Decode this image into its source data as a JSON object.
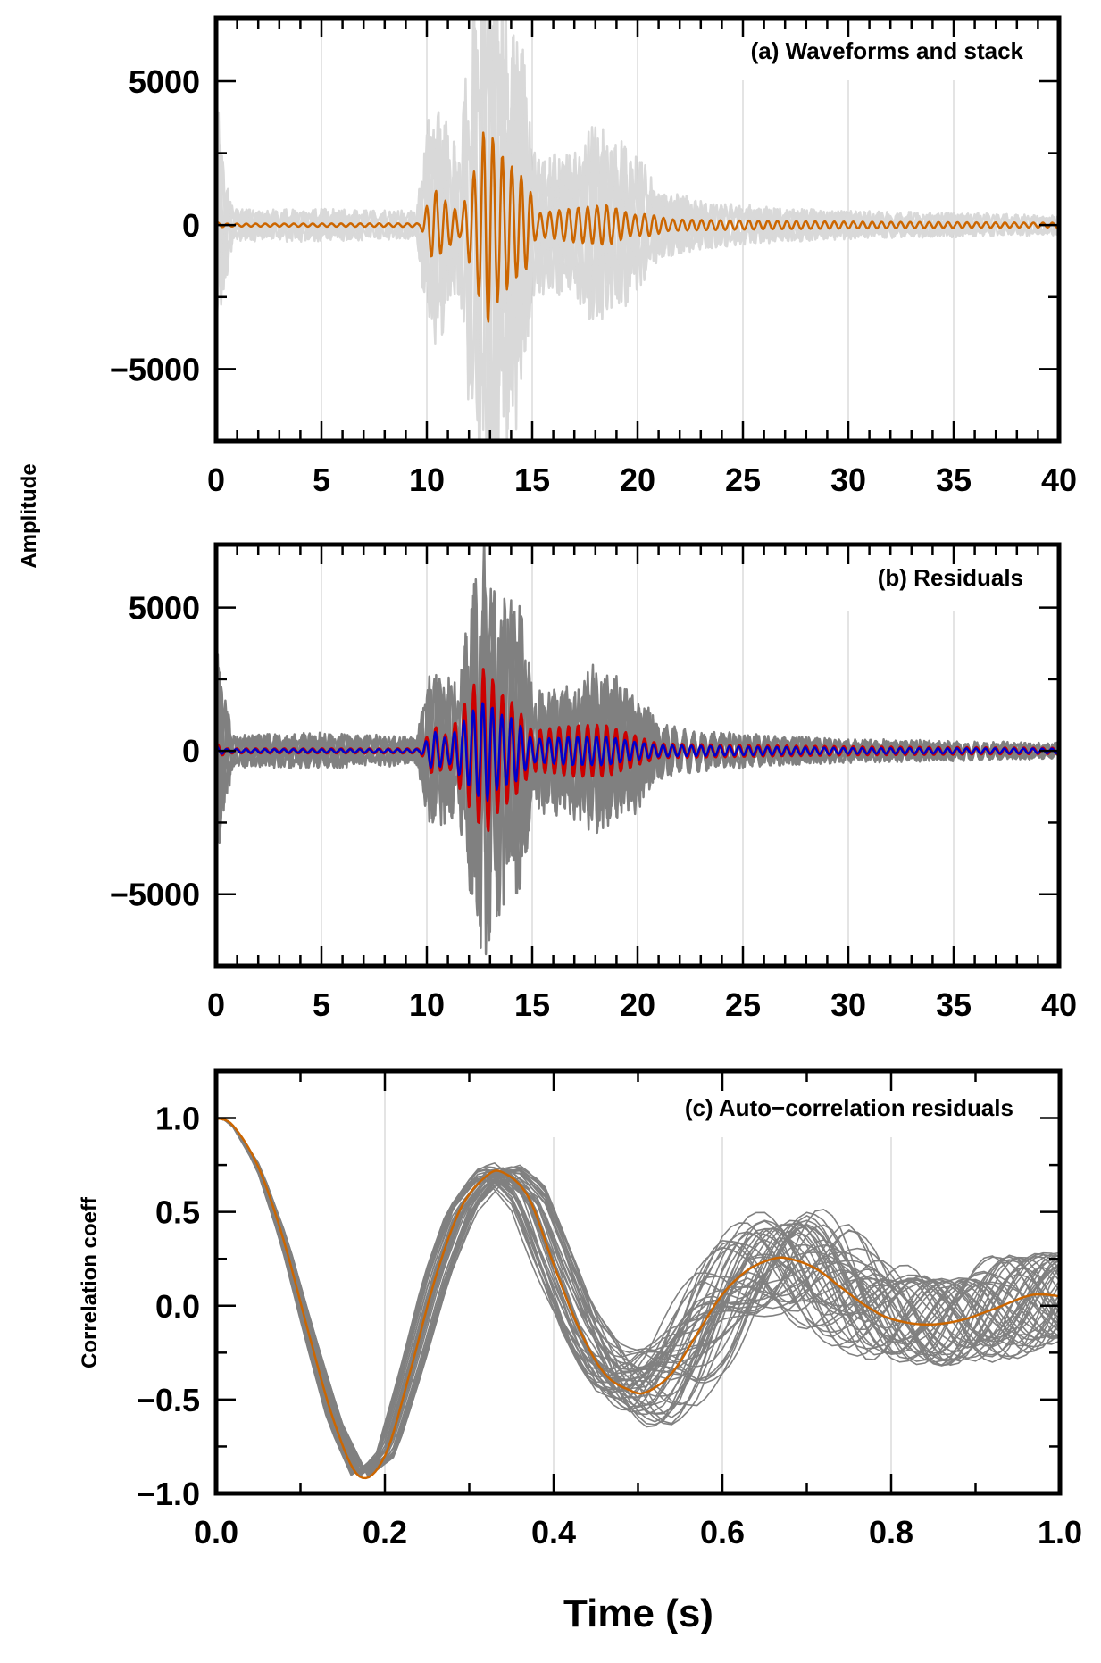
{
  "figure": {
    "shared_ylabel": "Amplitude",
    "xlabel": "Time (s)"
  },
  "colors": {
    "waveform": "#d9d9d9",
    "stack": "#cc6600",
    "residual_gray": "#808080",
    "residual_red": "#cc0000",
    "residual_blue": "#0000cc",
    "autocorr_traces": "#808080",
    "autocorr_mean": "#cc6600",
    "grid": "#c8c8c8"
  },
  "chart_data": [
    {
      "id": "a",
      "type": "line",
      "title": "(a) Waveforms and stack",
      "xlabel": "",
      "ylabel": "Amplitude",
      "xlim": [
        0,
        40
      ],
      "ylim": [
        -7500,
        7200
      ],
      "xticks": [
        0,
        5,
        10,
        15,
        20,
        25,
        30,
        35,
        40
      ],
      "xtick_labels": [
        "0",
        "5",
        "10",
        "15",
        "20",
        "25",
        "30",
        "35",
        "40"
      ],
      "xminor_step": 1,
      "yticks": [
        -5000,
        0,
        5000
      ],
      "ytick_labels": [
        "−5000",
        "0",
        "5000"
      ],
      "yminor_step": 2500,
      "grid": "vertical at major x ticks",
      "series": [
        {
          "name": "individual waveforms",
          "style": "light gray band",
          "dominant_period_s": 0.45,
          "envelope": {
            "t": [
              0,
              0.3,
              0.8,
              5,
              9.5,
              10,
              10.5,
              11.5,
              12.5,
              12.8,
              13.5,
              14.5,
              15,
              17,
              18,
              20,
              21,
              23,
              26,
              30,
              35,
              40
            ],
            "amp": [
              3200,
              2000,
              400,
              400,
              350,
              2500,
              3000,
              2000,
              7000,
              7500,
              5500,
              5000,
              1800,
              1800,
              2500,
              1800,
              900,
              600,
              450,
              350,
              300,
              250
            ]
          }
        },
        {
          "name": "stack",
          "style": "orange line",
          "dominant_period_s": 0.45,
          "envelope": {
            "t": [
              0,
              0.5,
              9.7,
              10.3,
              10.8,
              11.6,
              12.3,
              12.8,
              13.4,
              14.2,
              14.8,
              15.2,
              17,
              18.6,
              19.8,
              20.5,
              21.5,
              23,
              26,
              30,
              35,
              40
            ],
            "amp": [
              100,
              50,
              60,
              1300,
              900,
              400,
              2000,
              3600,
              2600,
              1900,
              1500,
              400,
              600,
              700,
              350,
              400,
              200,
              180,
              150,
              120,
              100,
              80
            ]
          }
        }
      ]
    },
    {
      "id": "b",
      "type": "line",
      "title": "(b) Residuals",
      "xlabel": "",
      "ylabel": "Amplitude",
      "xlim": [
        0,
        40
      ],
      "ylim": [
        -7500,
        7200
      ],
      "xticks": [
        0,
        5,
        10,
        15,
        20,
        25,
        30,
        35,
        40
      ],
      "xtick_labels": [
        "0",
        "5",
        "10",
        "15",
        "20",
        "25",
        "30",
        "35",
        "40"
      ],
      "xminor_step": 1,
      "yticks": [
        -5000,
        0,
        5000
      ],
      "ytick_labels": [
        "−5000",
        "0",
        "5000"
      ],
      "yminor_step": 2500,
      "grid": "vertical at major x ticks",
      "series": [
        {
          "name": "residual traces",
          "style": "gray band",
          "dominant_period_s": 0.45,
          "envelope": {
            "t": [
              0,
              0.3,
              0.8,
              5,
              9.5,
              10,
              10.5,
              11.5,
              12.3,
              12.8,
              13.5,
              14.5,
              15,
              17,
              18,
              20,
              21,
              23,
              26,
              30,
              35,
              40
            ],
            "amp": [
              3000,
              1800,
              400,
              450,
              350,
              1800,
              2000,
              1600,
              4800,
              5300,
              3900,
              3700,
              1500,
              1700,
              2200,
              1500,
              700,
              500,
              400,
              300,
              250,
              200
            ]
          }
        },
        {
          "name": "residual envelope (red)",
          "style": "red line",
          "dominant_period_s": 0.45,
          "envelope": {
            "t": [
              0,
              0.5,
              9.7,
              10.3,
              11,
              12.3,
              12.8,
              13.4,
              14.2,
              15,
              17,
              18.5,
              20,
              21,
              25,
              30,
              40
            ],
            "amp": [
              250,
              80,
              80,
              900,
              500,
              2400,
              3000,
              2100,
              1600,
              700,
              900,
              900,
              500,
              250,
              200,
              150,
              100
            ]
          }
        },
        {
          "name": "residual stack (blue)",
          "style": "blue line",
          "dominant_period_s": 0.45,
          "envelope": {
            "t": [
              0,
              0.5,
              9.7,
              10.3,
              11,
              12.3,
              12.8,
              13.4,
              14.2,
              15,
              17,
              18.5,
              20,
              21,
              25,
              30,
              40
            ],
            "amp": [
              150,
              60,
              60,
              700,
              400,
              1500,
              1800,
              1300,
              1100,
              400,
              500,
              500,
              300,
              200,
              150,
              100,
              80
            ]
          }
        }
      ]
    },
    {
      "id": "c",
      "type": "line",
      "title": "(c) Auto−correlation residuals",
      "xlabel": "Time (s)",
      "ylabel": "Correlation coeff",
      "xlim": [
        0.0,
        1.0
      ],
      "ylim": [
        -1.0,
        1.25
      ],
      "xticks": [
        0.0,
        0.2,
        0.4,
        0.6,
        0.8,
        1.0
      ],
      "xtick_labels": [
        "0.0",
        "0.2",
        "0.4",
        "0.6",
        "0.8",
        "1.0"
      ],
      "xminor_step": 0.1,
      "yticks": [
        -1.0,
        -0.5,
        0.0,
        0.5,
        1.0
      ],
      "ytick_labels": [
        "−1.0",
        "−0.5",
        "0.0",
        "0.5",
        "1.0"
      ],
      "yminor_step": 0.25,
      "grid": "vertical at major x ticks",
      "series": [
        {
          "name": "mean auto-correlation",
          "style": "orange line",
          "x": [
            0.0,
            0.02,
            0.05,
            0.08,
            0.11,
            0.14,
            0.17,
            0.2,
            0.23,
            0.26,
            0.29,
            0.32,
            0.34,
            0.37,
            0.4,
            0.43,
            0.46,
            0.49,
            0.51,
            0.54,
            0.57,
            0.6,
            0.63,
            0.66,
            0.68,
            0.71,
            0.74,
            0.77,
            0.8,
            0.84,
            0.88,
            0.92,
            0.96,
            0.98,
            1.0
          ],
          "y": [
            1.0,
            0.96,
            0.74,
            0.35,
            -0.15,
            -0.62,
            -0.91,
            -0.8,
            -0.35,
            0.15,
            0.52,
            0.69,
            0.71,
            0.58,
            0.22,
            -0.12,
            -0.36,
            -0.45,
            -0.46,
            -0.36,
            -0.15,
            0.06,
            0.19,
            0.25,
            0.25,
            0.2,
            0.1,
            0.0,
            -0.07,
            -0.1,
            -0.08,
            -0.02,
            0.05,
            0.06,
            0.05
          ]
        },
        {
          "name": "individual auto-correlations",
          "style": "gray lines",
          "count": 45,
          "spread_note": "traces scatter around the mean with period and phase jitter; peak near 0.33 s ranges ~0.35 to 0.85, trough near 0.5 s ranges ~-0.3 to -0.65"
        }
      ]
    }
  ]
}
